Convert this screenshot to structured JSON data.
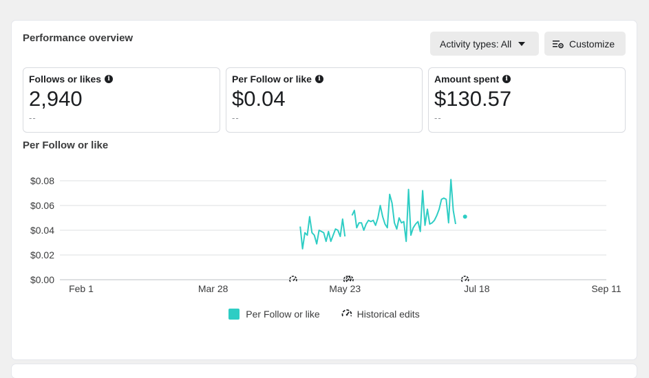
{
  "header": {
    "title": "Performance overview",
    "activity_label": "Activity types: All",
    "customize_label": "Customize"
  },
  "metrics": [
    {
      "label": "Follows or likes",
      "value": "2,940",
      "sub": "--"
    },
    {
      "label": "Per Follow or like",
      "value": "$0.04",
      "sub": "--"
    },
    {
      "label": "Amount spent",
      "value": "$130.57",
      "sub": "--"
    }
  ],
  "chart_title": "Per Follow or like",
  "legend": {
    "series_label": "Per Follow or like",
    "edits_label": "Historical edits"
  },
  "colors": {
    "series": "#2ecdc4",
    "grid": "#dddfe2",
    "axis_text": "#3a3b3c"
  },
  "chart_data": {
    "type": "line",
    "title": "Per Follow or like",
    "xlabel": "",
    "ylabel": "",
    "ylim": [
      0,
      0.08
    ],
    "y_ticks": [
      0,
      0.02,
      0.04,
      0.06,
      0.08
    ],
    "y_tick_labels": [
      "$0.00",
      "$0.02",
      "$0.04",
      "$0.06",
      "$0.08"
    ],
    "x_range": [
      "2024-01-29",
      "2024-09-12"
    ],
    "x_ticks": [
      {
        "date": "2024-02-01",
        "label": "Feb 1"
      },
      {
        "date": "2024-03-28",
        "label": "Mar 28"
      },
      {
        "date": "2024-05-23",
        "label": "May 23"
      },
      {
        "date": "2024-07-18",
        "label": "Jul 18"
      },
      {
        "date": "2024-09-11",
        "label": "Sep 11"
      }
    ],
    "grid": true,
    "legend_position": "bottom",
    "series": [
      {
        "name": "Per Follow or like",
        "segments": [
          [
            [
              "2024-05-04",
              0.043
            ],
            [
              "2024-05-05",
              0.025
            ],
            [
              "2024-05-06",
              0.038
            ],
            [
              "2024-05-07",
              0.036
            ],
            [
              "2024-05-08",
              0.051
            ],
            [
              "2024-05-09",
              0.038
            ],
            [
              "2024-05-10",
              0.036
            ],
            [
              "2024-05-11",
              0.029
            ],
            [
              "2024-05-12",
              0.04
            ],
            [
              "2024-05-13",
              0.039
            ],
            [
              "2024-05-14",
              0.038
            ],
            [
              "2024-05-15",
              0.031
            ],
            [
              "2024-05-16",
              0.039
            ],
            [
              "2024-05-17",
              0.031
            ],
            [
              "2024-05-18",
              0.036
            ],
            [
              "2024-05-19",
              0.041
            ],
            [
              "2024-05-20",
              0.04
            ],
            [
              "2024-05-21",
              0.035
            ],
            [
              "2024-05-22",
              0.049
            ],
            [
              "2024-05-23",
              0.035
            ]
          ],
          [
            [
              "2024-05-26",
              0.052
            ],
            [
              "2024-05-27",
              0.056
            ],
            [
              "2024-05-28",
              0.042
            ],
            [
              "2024-05-29",
              0.046
            ],
            [
              "2024-05-30",
              0.046
            ],
            [
              "2024-05-31",
              0.04
            ],
            [
              "2024-06-01",
              0.045
            ],
            [
              "2024-06-02",
              0.048
            ],
            [
              "2024-06-03",
              0.047
            ],
            [
              "2024-06-04",
              0.048
            ],
            [
              "2024-06-05",
              0.044
            ],
            [
              "2024-06-06",
              0.05
            ],
            [
              "2024-06-07",
              0.06
            ],
            [
              "2024-06-08",
              0.051
            ],
            [
              "2024-06-09",
              0.045
            ],
            [
              "2024-06-10",
              0.042
            ],
            [
              "2024-06-11",
              0.069
            ],
            [
              "2024-06-12",
              0.062
            ],
            [
              "2024-06-13",
              0.046
            ],
            [
              "2024-06-14",
              0.041
            ],
            [
              "2024-06-15",
              0.05
            ],
            [
              "2024-06-16",
              0.046
            ],
            [
              "2024-06-17",
              0.047
            ],
            [
              "2024-06-18",
              0.031
            ],
            [
              "2024-06-19",
              0.073
            ],
            [
              "2024-06-20",
              0.036
            ],
            [
              "2024-06-21",
              0.042
            ],
            [
              "2024-06-22",
              0.045
            ],
            [
              "2024-06-23",
              0.047
            ],
            [
              "2024-06-24",
              0.039
            ],
            [
              "2024-06-25",
              0.072
            ],
            [
              "2024-06-26",
              0.044
            ],
            [
              "2024-06-27",
              0.057
            ],
            [
              "2024-06-28",
              0.045
            ],
            [
              "2024-06-29",
              0.046
            ],
            [
              "2024-06-30",
              0.048
            ],
            [
              "2024-07-01",
              0.052
            ],
            [
              "2024-07-02",
              0.057
            ],
            [
              "2024-07-03",
              0.065
            ],
            [
              "2024-07-04",
              0.066
            ],
            [
              "2024-07-05",
              0.065
            ],
            [
              "2024-07-06",
              0.046
            ],
            [
              "2024-07-07",
              0.081
            ],
            [
              "2024-07-08",
              0.056
            ],
            [
              "2024-07-09",
              0.045
            ]
          ],
          [
            [
              "2024-07-13",
              0.051
            ]
          ]
        ]
      }
    ],
    "historical_edits": [
      "2024-05-01",
      "2024-05-24",
      "2024-05-25",
      "2024-07-13"
    ]
  }
}
